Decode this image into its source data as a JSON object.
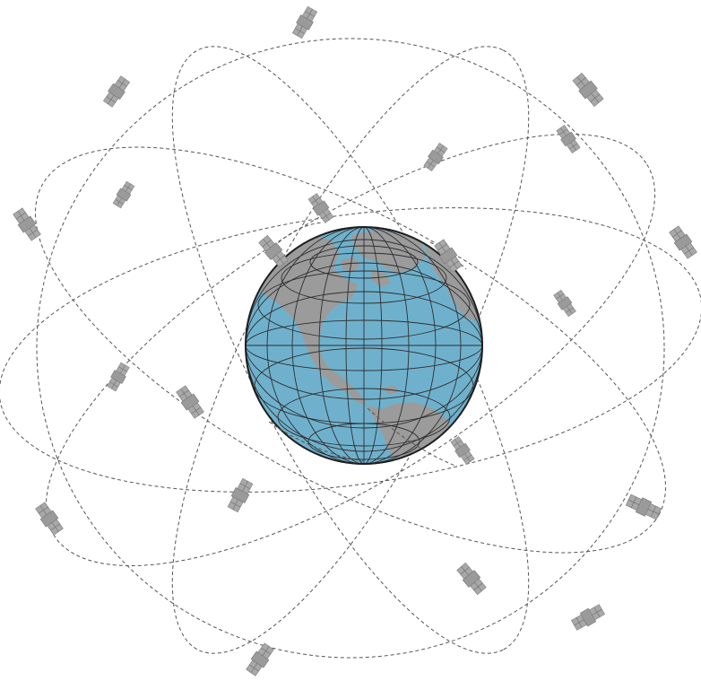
{
  "diagram": {
    "elements": [
      {
        "kind": "globe",
        "icon": "earth-globe-icon",
        "hemisphere_shown": "western"
      },
      {
        "kind": "orbits",
        "count": 6
      },
      {
        "kind": "satellites",
        "icon": "satellite-icon",
        "count": 24
      }
    ],
    "colors": {
      "ocean": "#6fb1cd",
      "land": "#9b9b9b",
      "grid": "#2e2e2e",
      "orbit": "#555555",
      "satellite": "#9a9a9a",
      "background": "#ffffff"
    }
  }
}
